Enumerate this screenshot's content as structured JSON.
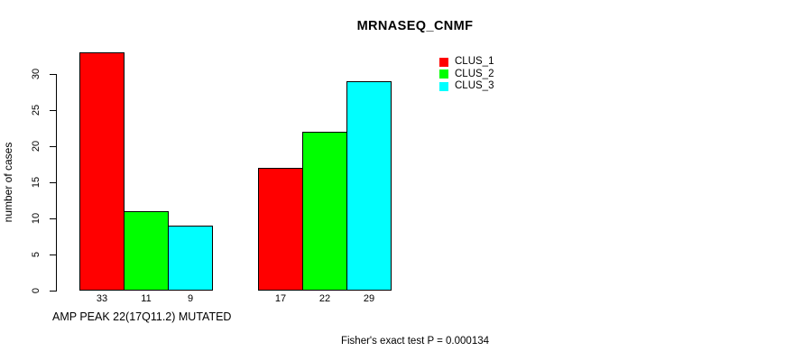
{
  "title": "MRNASEQ_CNMF",
  "axes": {
    "ylabel": "number of cases",
    "xlabel": "AMP PEAK 22(17Q11.2) MUTATED"
  },
  "footnote": "Fisher's exact test P = 0.000134",
  "chart_data": {
    "type": "bar",
    "title": "MRNASEQ_CNMF",
    "xlabel": "AMP PEAK 22(17Q11.2) MUTATED",
    "ylabel": "number of cases",
    "groups": 2,
    "series": [
      {
        "name": "CLUS_1",
        "color": "#ff0000",
        "values": [
          33,
          17
        ]
      },
      {
        "name": "CLUS_2",
        "color": "#00ff00",
        "values": [
          11,
          22
        ]
      },
      {
        "name": "CLUS_3",
        "color": "#00ffff",
        "values": [
          9,
          29
        ]
      }
    ],
    "bar_value_labels": [
      [
        "33",
        "11",
        "9"
      ],
      [
        "17",
        "22",
        "29"
      ]
    ],
    "yticks": [
      0,
      5,
      10,
      15,
      20,
      25,
      30
    ],
    "ylim": [
      0,
      33
    ],
    "grid": false,
    "legend_position": "top-right",
    "annotation": "Fisher's exact test P = 0.000134"
  }
}
